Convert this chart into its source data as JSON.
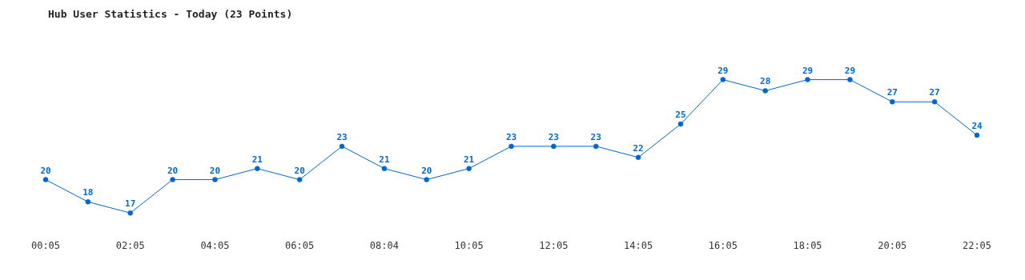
{
  "chart_data": {
    "type": "line",
    "title": "Hub User Statistics - Today (23 Points)",
    "categories": [
      "00:05",
      null,
      "02:05",
      null,
      "04:05",
      null,
      "06:05",
      null,
      "08:04",
      null,
      "10:05",
      null,
      "12:05",
      null,
      "14:05",
      null,
      "16:05",
      null,
      "18:05",
      null,
      "20:05",
      null,
      "22:05"
    ],
    "series": [
      {
        "color": "#0066cc",
        "values": [
          20,
          18,
          17,
          20,
          20,
          21,
          20,
          23,
          21,
          20,
          21,
          23,
          23,
          23,
          22,
          25,
          29,
          28,
          29,
          29,
          27,
          27,
          24
        ]
      }
    ],
    "data_labels": true,
    "marker": "circle",
    "tick_labels": "x",
    "grid": false,
    "line_style": "solid"
  }
}
